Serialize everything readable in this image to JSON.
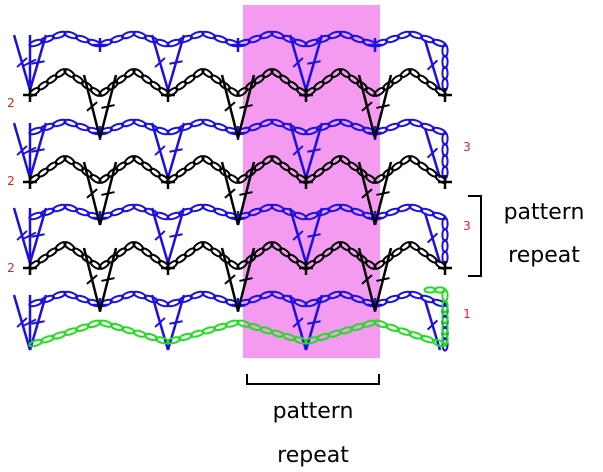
{
  "diagram": {
    "repeat_label_line1": "pattern",
    "repeat_label_line2": "repeat",
    "row_numbers": [
      {
        "text": "2",
        "row": 1,
        "side": "left"
      },
      {
        "text": "3",
        "row": 2,
        "side": "right"
      },
      {
        "text": "2",
        "row": 3,
        "side": "left"
      },
      {
        "text": "3",
        "row": 4,
        "side": "right"
      },
      {
        "text": "2",
        "row": 5,
        "side": "left"
      },
      {
        "text": "1",
        "row": 6,
        "side": "right"
      }
    ]
  },
  "colors": {
    "blue": "#1c10e0",
    "black": "#000000",
    "green": "#22dd22",
    "highlight": "#f49af1",
    "row_number": "#e52222"
  }
}
